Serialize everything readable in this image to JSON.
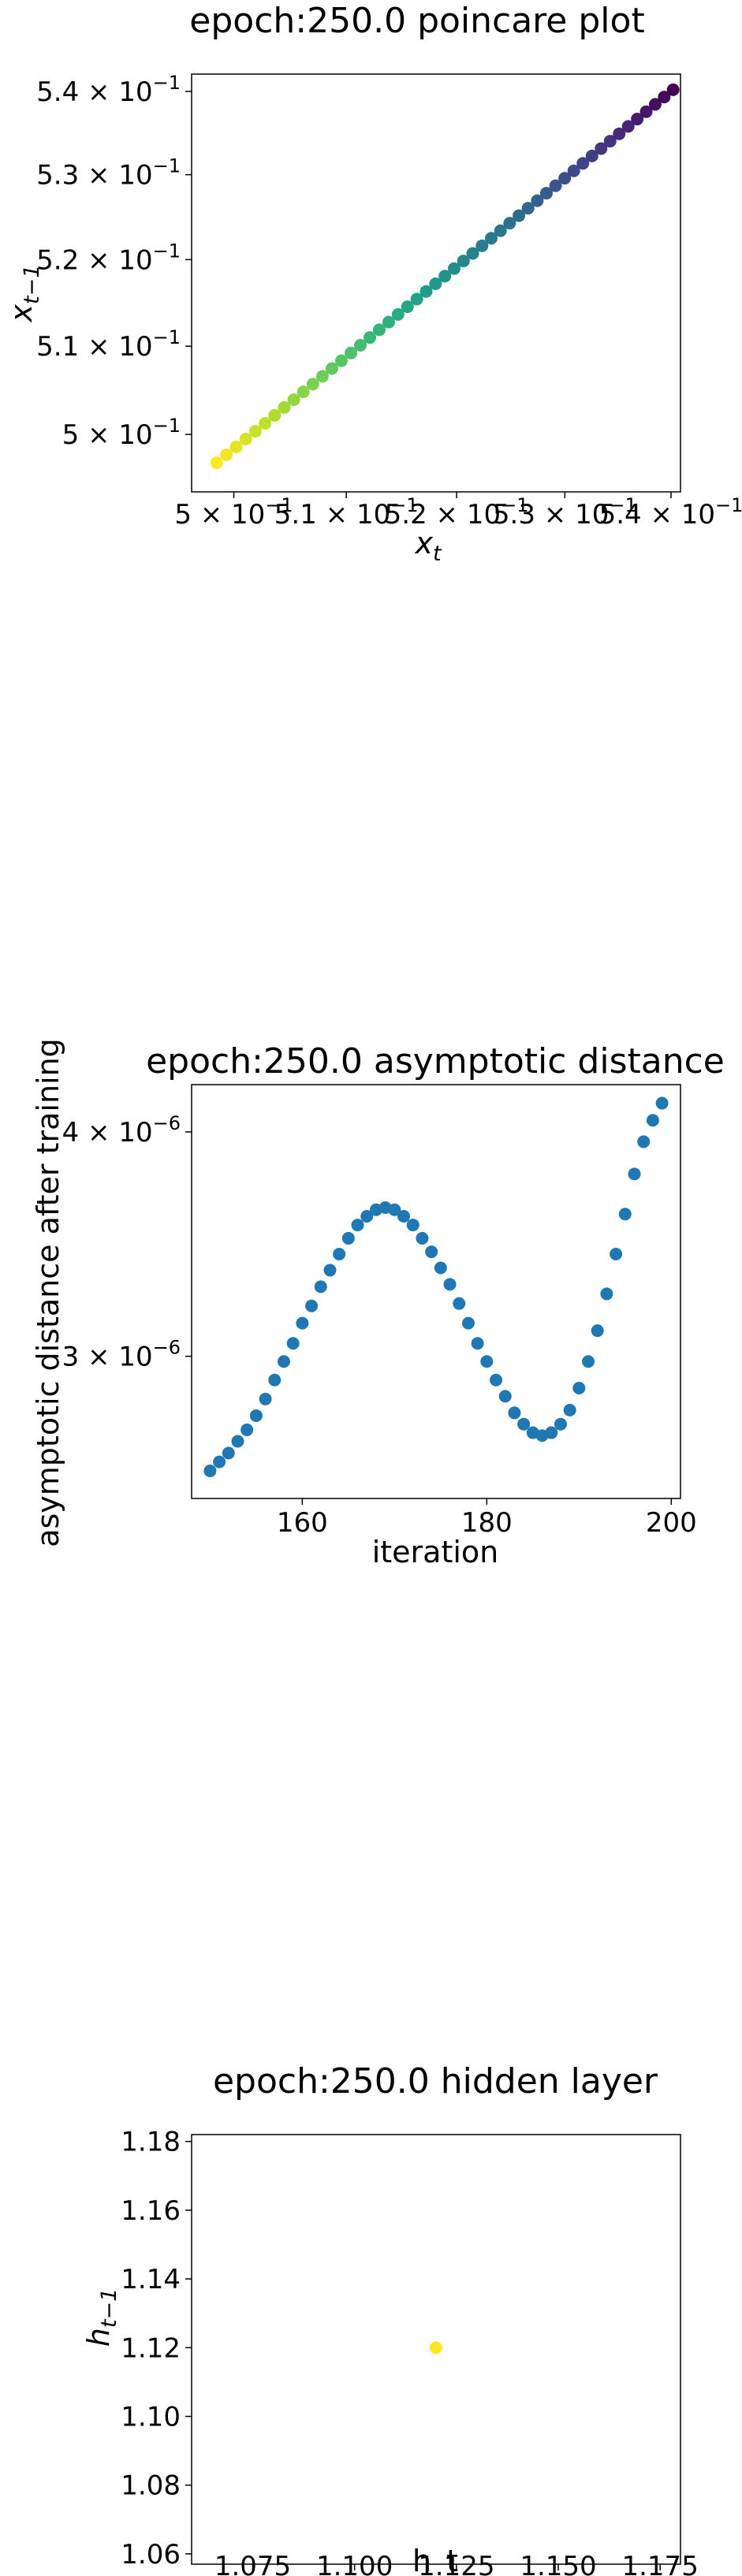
{
  "chart_data": [
    {
      "type": "scatter",
      "title": "epoch:250.0 poincare plot",
      "xlabel_main": "x",
      "xlabel_sub": "t",
      "ylabel_main": "x",
      "ylabel_sub": "t−1",
      "scale": "log",
      "xlim": [
        0.4963,
        0.5409
      ],
      "ylim": [
        0.4936,
        0.5421
      ],
      "xticks": [
        {
          "value": 0.5,
          "base": "5 × 10",
          "exp": "−1"
        },
        {
          "value": 0.51,
          "base": "5.1 × 10",
          "exp": "−1"
        },
        {
          "value": 0.52,
          "base": "5.2 × 10",
          "exp": "−1"
        },
        {
          "value": 0.53,
          "base": "5.3 × 10",
          "exp": "−1"
        },
        {
          "value": 0.54,
          "base": "5.4 × 10",
          "exp": "−1"
        }
      ],
      "yticks": [
        {
          "value": 0.5,
          "base": "5 × 10",
          "exp": "−1"
        },
        {
          "value": 0.51,
          "base": "5.1 × 10",
          "exp": "−1"
        },
        {
          "value": 0.52,
          "base": "5.2 × 10",
          "exp": "−1"
        },
        {
          "value": 0.53,
          "base": "5.3 × 10",
          "exp": "−1"
        },
        {
          "value": 0.54,
          "base": "5.4 × 10",
          "exp": "−1"
        }
      ],
      "x_start": 0.4985,
      "x_end": 0.5402,
      "lag_slope": 1.04,
      "n_points": 50,
      "colormap": "viridis (reversed, early = yellow, late = purple)",
      "colors": [
        "#fde725",
        "#b5de2b",
        "#6ece58",
        "#35b779",
        "#1f9e89",
        "#26828e",
        "#31688e",
        "#3e4989",
        "#482878",
        "#440154"
      ]
    },
    {
      "type": "scatter",
      "title": "epoch:250.0 asymptotic distance",
      "xlabel": "iteration",
      "ylabel": "asymptotic distance after training",
      "scale_y": "log",
      "xlim": [
        148,
        201
      ],
      "ylim": [
        2.5e-06,
        4.25e-06
      ],
      "xticks": [
        {
          "value": 160,
          "label": "160"
        },
        {
          "value": 180,
          "label": "180"
        },
        {
          "value": 200,
          "label": "200"
        }
      ],
      "yticks": [
        {
          "value": 3e-06,
          "base": "3 × 10",
          "exp": "−6"
        },
        {
          "value": 4e-06,
          "base": "4 × 10",
          "exp": "−6"
        }
      ],
      "color": "#1f77b4",
      "x": [
        150,
        151,
        152,
        153,
        154,
        155,
        156,
        157,
        158,
        159,
        160,
        161,
        162,
        163,
        164,
        165,
        166,
        167,
        168,
        169,
        170,
        171,
        172,
        173,
        174,
        175,
        176,
        177,
        178,
        179,
        180,
        181,
        182,
        183,
        184,
        185,
        186,
        187,
        188,
        189,
        190,
        191,
        192,
        193,
        194,
        195,
        196,
        197,
        198,
        199
      ],
      "y": [
        2.59e-06,
        2.62e-06,
        2.65e-06,
        2.69e-06,
        2.73e-06,
        2.78e-06,
        2.84e-06,
        2.91e-06,
        2.98e-06,
        3.05e-06,
        3.13e-06,
        3.2e-06,
        3.28e-06,
        3.35e-06,
        3.42e-06,
        3.49e-06,
        3.55e-06,
        3.59e-06,
        3.62e-06,
        3.63e-06,
        3.62e-06,
        3.59e-06,
        3.55e-06,
        3.49e-06,
        3.43e-06,
        3.36e-06,
        3.29e-06,
        3.21e-06,
        3.13e-06,
        3.05e-06,
        2.98e-06,
        2.91e-06,
        2.85e-06,
        2.79e-06,
        2.75e-06,
        2.72e-06,
        2.71e-06,
        2.72e-06,
        2.75e-06,
        2.8e-06,
        2.88e-06,
        2.98e-06,
        3.1e-06,
        3.25e-06,
        3.42e-06,
        3.6e-06,
        3.79e-06,
        3.95e-06,
        4.06e-06,
        4.15e-06
      ]
    },
    {
      "type": "scatter",
      "title": "epoch:250.0 hidden layer",
      "xlabel": "h_t",
      "ylabel_main": "h",
      "ylabel_sub": "t−1",
      "xlim": [
        1.06,
        1.18
      ],
      "ylim": [
        1.057,
        1.182
      ],
      "xticks": [
        {
          "value": 1.075,
          "label": "1.075"
        },
        {
          "value": 1.1,
          "label": "1.100"
        },
        {
          "value": 1.125,
          "label": "1.125"
        },
        {
          "value": 1.15,
          "label": "1.150"
        },
        {
          "value": 1.175,
          "label": "1.175"
        }
      ],
      "yticks": [
        {
          "value": 1.06,
          "label": "1.06"
        },
        {
          "value": 1.08,
          "label": "1.08"
        },
        {
          "value": 1.1,
          "label": "1.10"
        },
        {
          "value": 1.12,
          "label": "1.12"
        },
        {
          "value": 1.14,
          "label": "1.14"
        },
        {
          "value": 1.16,
          "label": "1.16"
        },
        {
          "value": 1.18,
          "label": "1.18"
        }
      ],
      "points": [
        {
          "x": 1.12,
          "y": 1.12
        }
      ],
      "color": "#fde725"
    }
  ]
}
